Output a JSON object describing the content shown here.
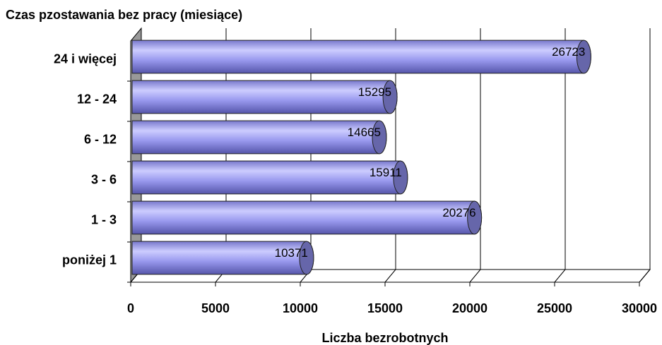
{
  "chart_data": {
    "type": "bar",
    "orientation": "horizontal",
    "title": "Czas pzostawania bez pracy (miesiące)",
    "x_label": "Liczba bezrobotnych",
    "categories": [
      "poniżej 1",
      "1 - 3",
      "3 - 6",
      "6 - 12",
      "12 - 24",
      "24 i więcej"
    ],
    "values": [
      10371,
      20276,
      15911,
      14665,
      15295,
      26723
    ],
    "color": "#9999ee",
    "xlim": [
      0,
      30000
    ],
    "xticks": [
      0,
      5000,
      10000,
      15000,
      20000,
      25000,
      30000
    ],
    "grid": true
  }
}
